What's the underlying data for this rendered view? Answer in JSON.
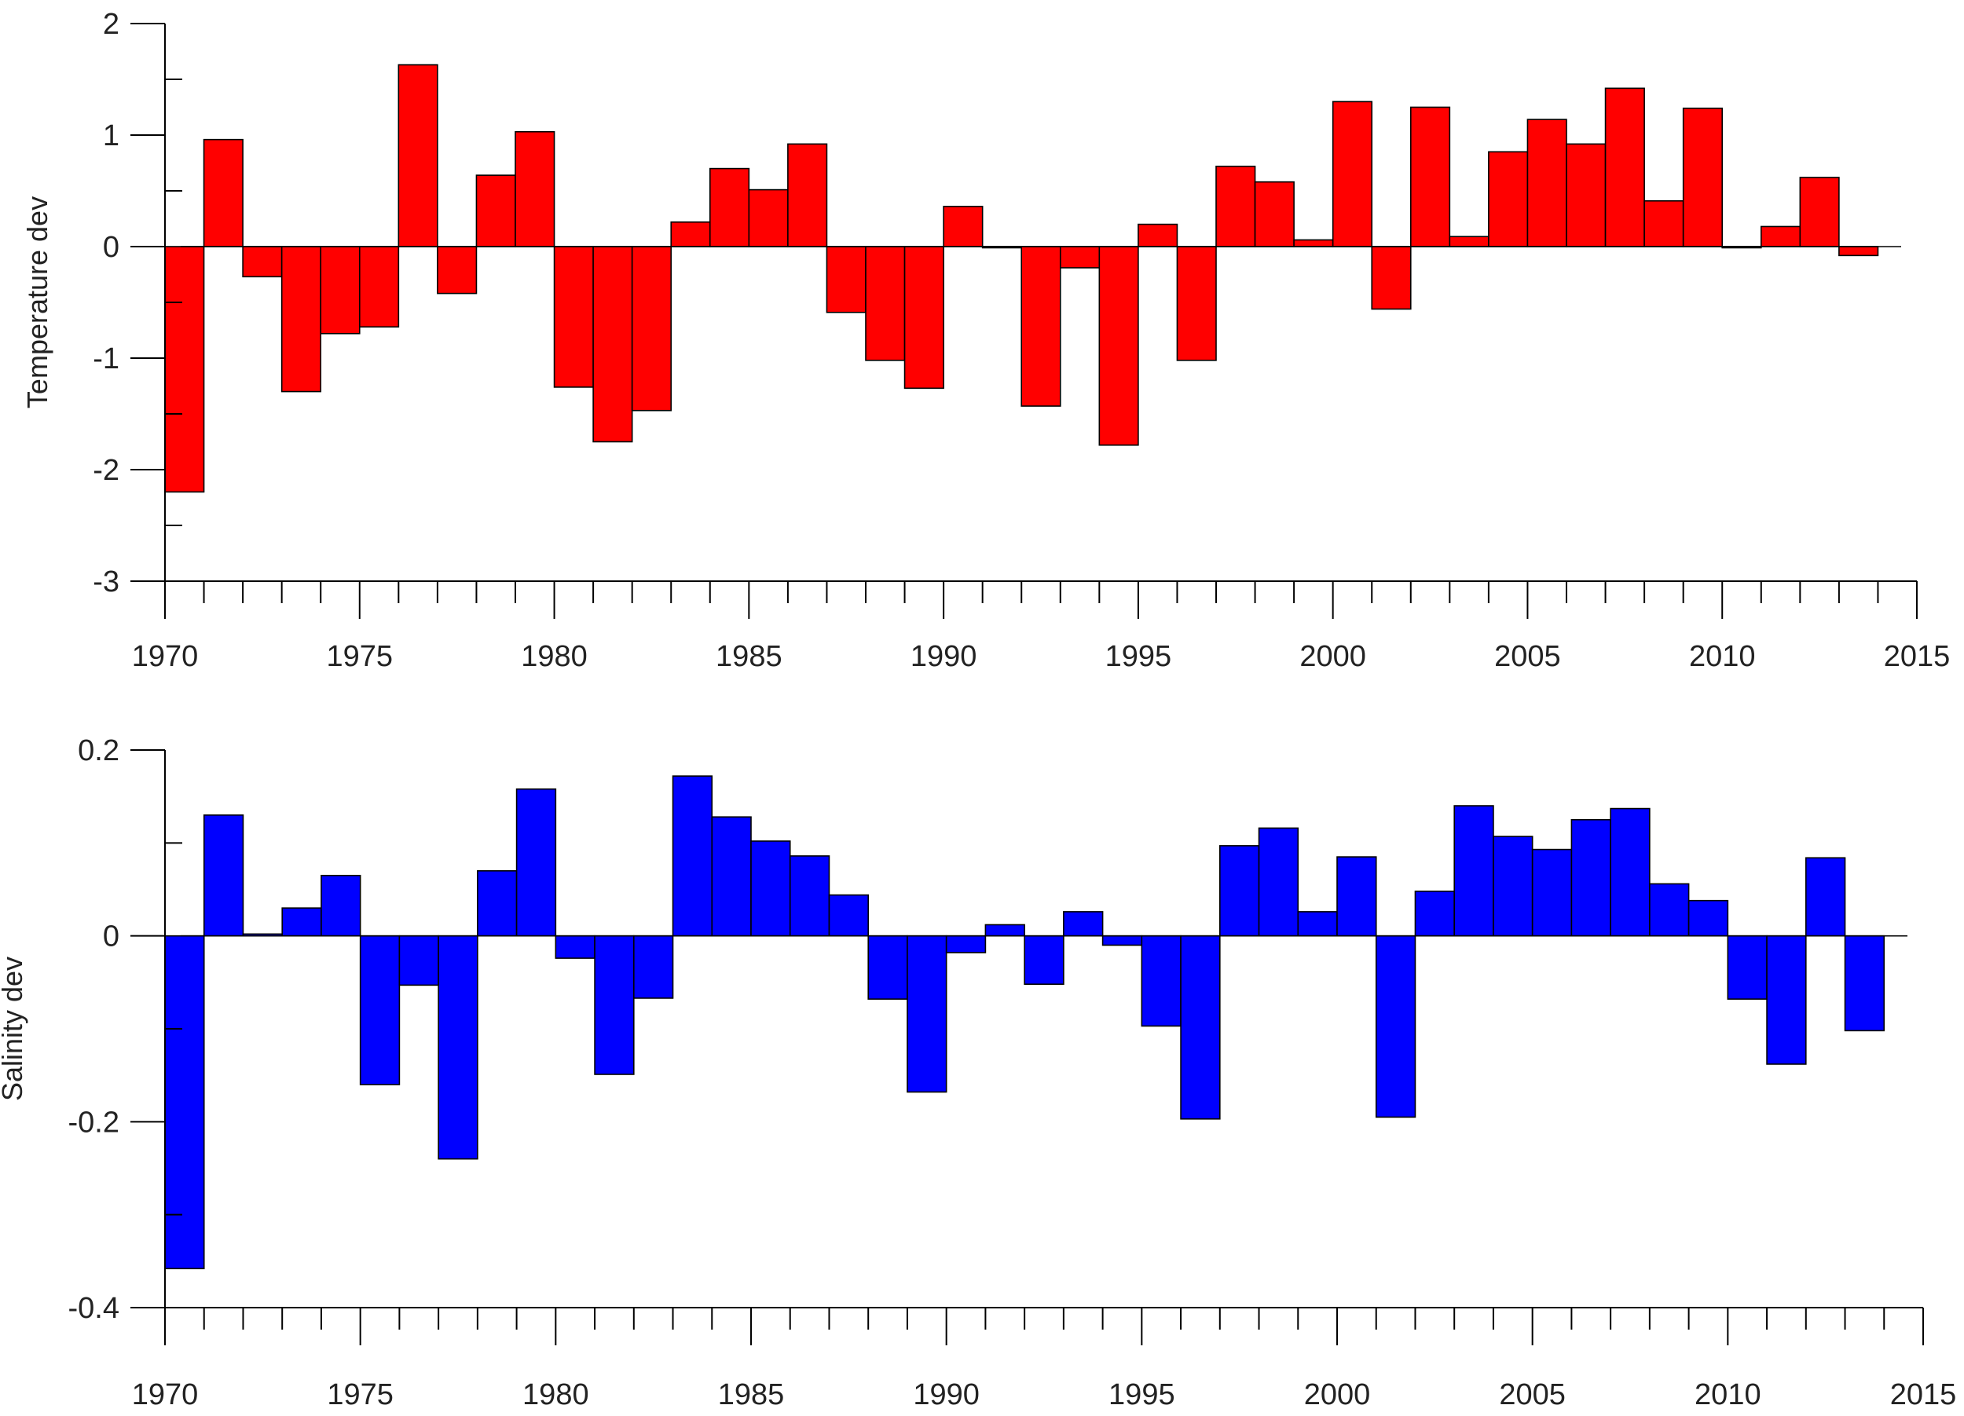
{
  "chart_data": [
    {
      "type": "bar",
      "ylabel": "Temperature dev",
      "xlabel": "",
      "title": "",
      "bar_color": "#ff0000",
      "edge_color": "#000000",
      "xlim": [
        1970,
        2015
      ],
      "ylim": [
        -3,
        2
      ],
      "y_ticks": [
        2,
        1,
        0,
        -1,
        -2,
        -3
      ],
      "y_tick_labels": [
        "2",
        "1",
        "0",
        "-1",
        "-2",
        "-3"
      ],
      "x_ticks": [
        1970,
        1975,
        1980,
        1985,
        1990,
        1995,
        2000,
        2005,
        2010,
        2015
      ],
      "x_tick_labels": [
        "1970",
        "1975",
        "1980",
        "1985",
        "1990",
        "1995",
        "2000",
        "2005",
        "2010",
        "2015"
      ],
      "grid": false,
      "legend": "none",
      "x": [
        1971,
        1972,
        1973,
        1974,
        1975,
        1976,
        1977,
        1978,
        1979,
        1980,
        1981,
        1982,
        1983,
        1984,
        1985,
        1986,
        1987,
        1988,
        1989,
        1990,
        1991,
        1992,
        1993,
        1994,
        1995,
        1996,
        1997,
        1998,
        1999,
        2000,
        2001,
        2002,
        2003,
        2004,
        2005,
        2006,
        2007,
        2008,
        2009,
        2010,
        2011,
        2012,
        2013,
        2014
      ],
      "values": [
        -2.2,
        0.96,
        -0.27,
        -1.3,
        -0.78,
        -0.72,
        1.63,
        -0.42,
        0.64,
        1.03,
        -1.26,
        -1.75,
        -1.47,
        0.22,
        0.7,
        0.51,
        0.92,
        -0.59,
        -1.02,
        -1.27,
        0.36,
        0.0,
        -1.43,
        -0.19,
        -1.78,
        0.2,
        -1.02,
        0.72,
        0.58,
        0.06,
        1.3,
        -0.56,
        1.25,
        0.09,
        0.85,
        1.14,
        0.92,
        1.42,
        0.41,
        1.24,
        0.0,
        0.18,
        0.62,
        -0.08
      ]
    },
    {
      "type": "bar",
      "ylabel": "Salinity dev",
      "xlabel": "",
      "title": "",
      "bar_color": "#0000ff",
      "edge_color": "#000000",
      "xlim": [
        1970,
        2015
      ],
      "ylim": [
        -0.4,
        0.2
      ],
      "y_ticks": [
        0.2,
        0,
        -0.2,
        -0.4
      ],
      "y_tick_labels": [
        "0.2",
        "0",
        "-0.2",
        "-0.4"
      ],
      "x_ticks": [
        1970,
        1975,
        1980,
        1985,
        1990,
        1995,
        2000,
        2005,
        2010,
        2015
      ],
      "x_tick_labels": [
        "1970",
        "1975",
        "1980",
        "1985",
        "1990",
        "1995",
        "2000",
        "2005",
        "2010",
        "2015"
      ],
      "grid": false,
      "legend": "none",
      "x": [
        1971,
        1972,
        1973,
        1974,
        1975,
        1976,
        1977,
        1978,
        1979,
        1980,
        1981,
        1982,
        1983,
        1984,
        1985,
        1986,
        1987,
        1988,
        1989,
        1990,
        1991,
        1992,
        1993,
        1994,
        1995,
        1996,
        1997,
        1998,
        1999,
        2000,
        2001,
        2002,
        2003,
        2004,
        2005,
        2006,
        2007,
        2008,
        2009,
        2010,
        2011,
        2012,
        2013,
        2014
      ],
      "values": [
        -0.358,
        0.13,
        0.002,
        0.03,
        0.065,
        -0.16,
        -0.053,
        -0.24,
        0.07,
        0.158,
        -0.024,
        -0.149,
        -0.067,
        0.172,
        0.128,
        0.102,
        0.086,
        0.044,
        -0.068,
        -0.168,
        -0.018,
        0.012,
        -0.052,
        0.026,
        -0.01,
        -0.097,
        -0.197,
        0.097,
        0.116,
        0.026,
        0.085,
        -0.195,
        0.048,
        0.14,
        0.107,
        0.093,
        0.125,
        0.137,
        0.056,
        0.038,
        -0.068,
        -0.138,
        0.084,
        -0.102
      ]
    }
  ]
}
